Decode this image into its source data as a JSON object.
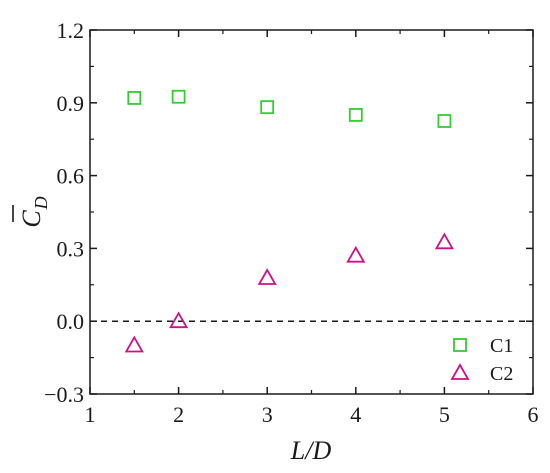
{
  "chart_data": {
    "type": "scatter",
    "xlabel": "L/D",
    "ylabel_base": "C",
    "ylabel_sub": "D",
    "xlim": [
      1,
      6
    ],
    "ylim": [
      -0.3,
      1.2
    ],
    "x_ticks": [
      1,
      2,
      3,
      4,
      5,
      6
    ],
    "x_tick_labels": [
      "1",
      "2",
      "3",
      "4",
      "5",
      "6"
    ],
    "y_ticks": [
      -0.3,
      0.0,
      0.3,
      0.6,
      0.9,
      1.2
    ],
    "y_tick_labels": [
      "−0.3",
      "0.0",
      "0.3",
      "0.6",
      "0.9",
      "1.2"
    ],
    "grid": false,
    "legend_position": "bottom-right",
    "reference_line": {
      "y": 0.0,
      "style": "dashed"
    },
    "series": [
      {
        "name": "C1",
        "marker": "square",
        "color": "#33cc33",
        "x": [
          1.5,
          2,
          3,
          4,
          5
        ],
        "y": [
          0.92,
          0.925,
          0.882,
          0.85,
          0.825
        ]
      },
      {
        "name": "C2",
        "marker": "triangle",
        "color": "#cc1188",
        "x": [
          1.5,
          2,
          3,
          4,
          5
        ],
        "y": [
          -0.1,
          0.0,
          0.178,
          0.27,
          0.325
        ]
      }
    ]
  }
}
